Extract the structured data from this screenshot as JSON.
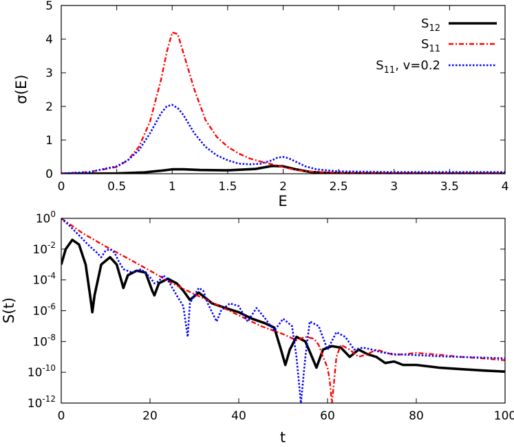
{
  "colors": {
    "s12": "#000000",
    "s11": "#ff0000",
    "s11v": "#0000ff"
  },
  "chart_data": [
    {
      "type": "line",
      "xlabel": "E",
      "ylabel": "σ(E)",
      "xlim": [
        0,
        4
      ],
      "ylim": [
        0,
        5
      ],
      "xticks": [
        "0",
        "0.5",
        "1",
        "1.5",
        "2",
        "2.5",
        "3",
        "3.5",
        "4"
      ],
      "yticks": [
        "0",
        "1",
        "2",
        "3",
        "4",
        "5"
      ],
      "grid": false,
      "legend_position": "top-right",
      "legend": [
        {
          "base": "S",
          "sub": "12",
          "suffix": ""
        },
        {
          "base": "S",
          "sub": "11",
          "suffix": ""
        },
        {
          "base": "S",
          "sub": "11",
          "suffix": ", v=0.2"
        }
      ],
      "series": [
        {
          "key": "s12",
          "name": "S12",
          "style": "solid",
          "x": [
            0,
            0.25,
            0.5,
            0.75,
            0.9,
            1.0,
            1.1,
            1.25,
            1.5,
            1.75,
            1.9,
            2.0,
            2.1,
            2.25,
            2.5,
            3.0,
            3.5,
            4.0
          ],
          "y": [
            0.0,
            0.003,
            0.01,
            0.04,
            0.09,
            0.13,
            0.13,
            0.11,
            0.1,
            0.14,
            0.23,
            0.22,
            0.14,
            0.05,
            0.01,
            0.003,
            0.002,
            0.001
          ]
        },
        {
          "key": "s11",
          "name": "S11",
          "style": "dashdot",
          "x": [
            0,
            0.25,
            0.5,
            0.6,
            0.7,
            0.8,
            0.9,
            0.95,
            1.0,
            1.05,
            1.1,
            1.2,
            1.3,
            1.4,
            1.5,
            1.6,
            1.7,
            1.8,
            1.9,
            2.0,
            2.1,
            2.25,
            2.5,
            3.0,
            3.5,
            4.0
          ],
          "y": [
            0.01,
            0.05,
            0.2,
            0.4,
            0.8,
            1.55,
            2.8,
            3.6,
            4.2,
            4.15,
            3.6,
            2.5,
            1.6,
            1.1,
            0.8,
            0.6,
            0.45,
            0.36,
            0.28,
            0.2,
            0.12,
            0.06,
            0.03,
            0.02,
            0.02,
            0.02
          ]
        },
        {
          "key": "s11v",
          "name": "S11, v=0.2",
          "style": "dotted",
          "x": [
            0,
            0.25,
            0.5,
            0.6,
            0.7,
            0.8,
            0.9,
            0.95,
            1.0,
            1.05,
            1.1,
            1.2,
            1.3,
            1.4,
            1.5,
            1.6,
            1.7,
            1.8,
            1.9,
            1.95,
            2.0,
            2.05,
            2.1,
            2.2,
            2.3,
            2.5,
            3.0,
            3.5,
            4.0
          ],
          "y": [
            0.01,
            0.05,
            0.22,
            0.4,
            0.7,
            1.2,
            1.8,
            2.0,
            2.05,
            1.95,
            1.75,
            1.2,
            0.8,
            0.55,
            0.4,
            0.3,
            0.28,
            0.3,
            0.4,
            0.48,
            0.5,
            0.46,
            0.38,
            0.22,
            0.13,
            0.07,
            0.05,
            0.05,
            0.05
          ]
        }
      ]
    },
    {
      "type": "line",
      "xlabel": "t",
      "ylabel": "S(t)",
      "xlim": [
        0,
        100
      ],
      "ylim": [
        1e-12,
        1
      ],
      "yscale": "log",
      "xticks": [
        "0",
        "20",
        "40",
        "60",
        "80",
        "100"
      ],
      "yticks": [
        {
          "base": "10",
          "exp": "0"
        },
        {
          "base": "10",
          "exp": "-2"
        },
        {
          "base": "10",
          "exp": "-4"
        },
        {
          "base": "10",
          "exp": "-6"
        },
        {
          "base": "10",
          "exp": "-8"
        },
        {
          "base": "10",
          "exp": "-10"
        },
        {
          "base": "10",
          "exp": "-12"
        }
      ],
      "grid": false,
      "series": [
        {
          "key": "s12",
          "name": "S12",
          "style": "solid",
          "x": [
            0,
            1,
            2.5,
            4,
            5.5,
            6.5,
            7,
            7.5,
            9,
            11,
            12.5,
            13.5,
            14,
            15,
            17,
            19,
            20.5,
            21,
            22,
            24,
            26,
            27.5,
            29,
            31,
            34,
            37,
            40,
            43,
            46,
            48,
            49.5,
            50.5,
            51.5,
            53,
            55,
            56.5,
            57.5,
            59,
            61,
            63,
            65,
            67,
            69,
            71,
            73,
            75,
            77,
            80,
            85,
            90,
            95,
            100
          ],
          "y": [
            0.001,
            0.01,
            0.04,
            0.02,
            0.001,
            1e-05,
            8e-07,
            1e-05,
            0.001,
            0.003,
            0.001,
            0.0001,
            3e-05,
            0.0002,
            0.0004,
            0.0003,
            2e-05,
            1e-05,
            6e-05,
            0.00012,
            6e-05,
            2e-05,
            5e-06,
            1.5e-05,
            3e-06,
            1.5e-06,
            8e-07,
            3e-07,
            1.5e-07,
            8e-08,
            3e-09,
            3e-10,
            3e-09,
            2e-08,
            1e-08,
            1e-09,
            2e-10,
            3e-09,
            5e-09,
            4e-09,
            1e-09,
            3e-09,
            1.5e-09,
            1e-09,
            4e-10,
            5e-10,
            3e-10,
            3e-10,
            2e-10,
            1.6e-10,
            1.3e-10,
            1.1e-10
          ]
        },
        {
          "key": "s11",
          "name": "S11",
          "style": "dashdot",
          "x": [
            0,
            5,
            10,
            15,
            20,
            25,
            30,
            35,
            40,
            45,
            50,
            53,
            55,
            57,
            58,
            59,
            60,
            60.5,
            61,
            61.5,
            62,
            63,
            65,
            67,
            69,
            71,
            73,
            75,
            80,
            85,
            90,
            95,
            100
          ],
          "y": [
            1,
            0.1,
            0.015,
            0.0025,
            0.0004,
            6e-05,
            1.2e-05,
            2.5e-06,
            5e-07,
            1e-07,
            3e-08,
            1.2e-08,
            2e-08,
            1.5e-08,
            6e-09,
            1e-09,
            2e-10,
            3e-11,
            1e-12,
            3e-11,
            1e-09,
            6e-09,
            3e-09,
            1e-09,
            1.5e-09,
            3e-09,
            2e-09,
            1.3e-09,
            1.8e-09,
            1.4e-09,
            1e-09,
            8e-10,
            6e-10
          ]
        },
        {
          "key": "s11v",
          "name": "S11, v=0.2",
          "style": "dotted",
          "x": [
            0,
            2,
            4,
            6,
            8,
            9,
            10,
            11,
            12,
            13,
            14,
            16,
            18,
            20,
            21,
            22,
            23,
            24,
            26,
            27.5,
            28.5,
            29,
            30,
            31,
            32,
            33,
            35,
            36,
            38,
            40,
            42,
            44,
            46,
            48,
            50,
            52,
            53,
            54,
            55,
            56,
            58,
            60,
            62,
            64,
            66,
            68,
            70,
            72,
            75,
            80,
            85,
            90,
            95,
            100
          ],
          "y": [
            1,
            0.3,
            0.08,
            0.02,
            0.006,
            0.003,
            0.008,
            0.01,
            0.006,
            0.0015,
            0.0005,
            0.0003,
            0.0005,
            0.00015,
            6e-05,
            8e-05,
            0.0002,
            0.0001,
            1e-05,
            2e-06,
            2e-08,
            3e-06,
            1e-05,
            3e-05,
            2e-05,
            3e-06,
            2e-07,
            1e-06,
            3e-06,
            2e-06,
            2e-07,
            1.5e-06,
            3e-07,
            5e-08,
            3e-07,
            1e-07,
            1e-09,
            1e-12,
            1e-09,
            2e-07,
            1e-07,
            3e-09,
            4e-08,
            2e-08,
            3e-09,
            4e-09,
            3e-09,
            2e-09,
            1.5e-09,
            1.3e-09,
            1.1e-09,
            1e-09,
            9e-10,
            8e-10
          ]
        }
      ]
    }
  ]
}
